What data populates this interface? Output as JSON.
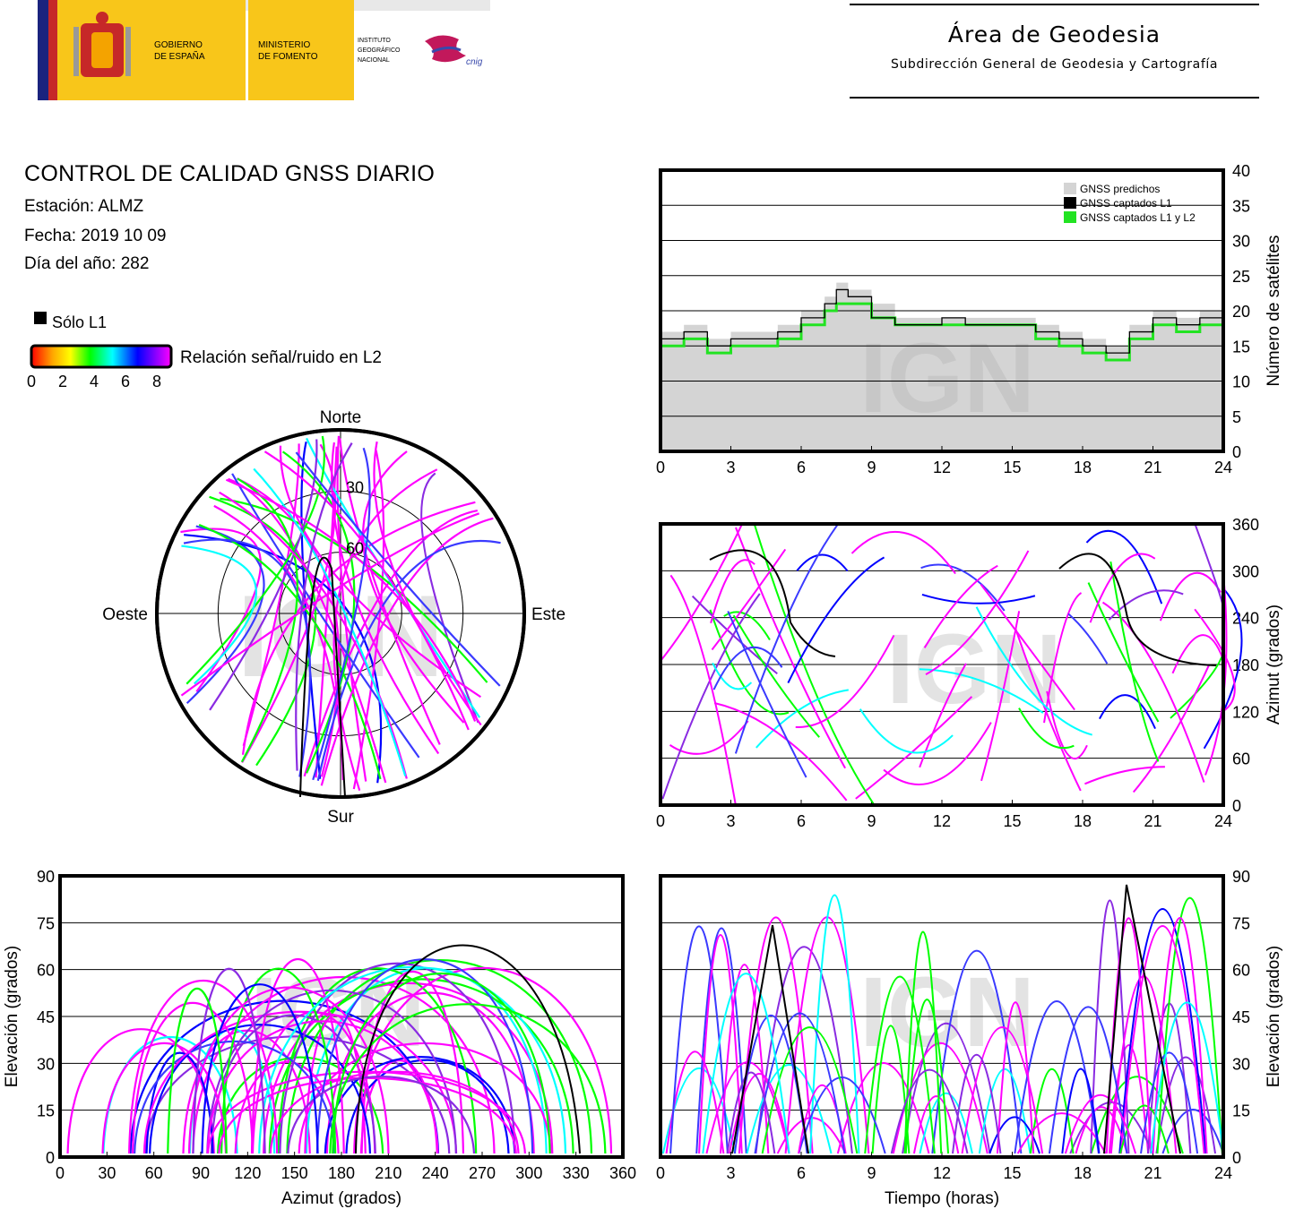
{
  "header": {
    "gov_line1": "GOBIERNO",
    "gov_line2": "DE ESPAÑA",
    "min_line1": "MINISTERIO",
    "min_line2": "DE FOMENTO",
    "inst_line1": "INSTITUTO",
    "inst_line2": "GEOGRÁFICO",
    "inst_line3": "NACIONAL",
    "cnig": "cnig",
    "area_title": "Área de Geodesia",
    "area_subtitle": "Subdirección General de Geodesia y Cartografía"
  },
  "report": {
    "title": "CONTROL DE CALIDAD GNSS DIARIO",
    "station": "Estación: ALMZ",
    "date": "Fecha: 2019 10 09",
    "doy": "Día del año: 282"
  },
  "legend": {
    "l1_only": "Sólo L1",
    "snr_label": "Relación señal/ruido en L2",
    "snr_ticks": [
      "0",
      "2",
      "4",
      "6",
      "8"
    ]
  },
  "colors": {
    "predicted": "#d4d4d4",
    "l1": "#000000",
    "l1l2": "#22e322",
    "track_main": "#ff00ff",
    "snr_scale": [
      "#ff0000",
      "#ffa500",
      "#ffff00",
      "#00ff00",
      "#00ffff",
      "#0000ff",
      "#ff00ff"
    ]
  },
  "watermark": "IGN",
  "chart_data": [
    {
      "type": "area",
      "name": "satellite-count",
      "ylabel": "Número de satélites",
      "xlim": [
        0,
        24
      ],
      "ylim": [
        0,
        40
      ],
      "xticks": [
        "0",
        "3",
        "6",
        "9",
        "12",
        "15",
        "18",
        "21",
        "24"
      ],
      "yticks": [
        "0",
        "5",
        "10",
        "15",
        "20",
        "25",
        "30",
        "35",
        "40"
      ],
      "grid": true,
      "legend_position": "top-right",
      "series": [
        {
          "name": "GNSS predichos",
          "x": [
            0,
            1,
            2,
            3,
            4,
            5,
            6,
            7,
            7.5,
            8,
            9,
            10,
            11,
            12,
            13,
            14,
            15,
            16,
            17,
            18,
            19,
            20,
            21,
            22,
            23,
            24
          ],
          "y": [
            17,
            18,
            16,
            17,
            17,
            18,
            20,
            22,
            24,
            23,
            21,
            19,
            19,
            19,
            19,
            19,
            19,
            18,
            17,
            16,
            15,
            18,
            20,
            19,
            20,
            19
          ]
        },
        {
          "name": "GNSS captados L1",
          "x": [
            0,
            1,
            2,
            3,
            4,
            5,
            6,
            7,
            7.5,
            8,
            9,
            10,
            11,
            12,
            13,
            14,
            15,
            16,
            17,
            18,
            19,
            20,
            21,
            22,
            23,
            24
          ],
          "y": [
            16,
            17,
            15,
            16,
            16,
            17,
            19,
            21,
            23,
            22,
            19,
            18,
            18,
            19,
            18,
            18,
            18,
            17,
            16,
            15,
            14,
            17,
            19,
            18,
            19,
            18
          ]
        },
        {
          "name": "GNSS captados L1 y L2",
          "x": [
            0,
            1,
            2,
            3,
            4,
            5,
            6,
            7,
            7.5,
            8,
            9,
            10,
            11,
            12,
            13,
            14,
            15,
            16,
            17,
            18,
            19,
            20,
            21,
            22,
            23,
            24
          ],
          "y": [
            15,
            16,
            14,
            15,
            15,
            16,
            18,
            20,
            21,
            21,
            19,
            18,
            18,
            18,
            18,
            18,
            18,
            16,
            15,
            14,
            13,
            16,
            18,
            17,
            18,
            17
          ]
        }
      ]
    },
    {
      "type": "scatter",
      "name": "sky-plot",
      "labels": {
        "north": "Norte",
        "south": "Sur",
        "east": "Este",
        "west": "Oeste"
      },
      "elevation_rings": [
        "30",
        "60"
      ]
    },
    {
      "type": "scatter",
      "name": "azimuth-vs-time",
      "ylabel": "Azimut (grados)",
      "xlim": [
        0,
        24
      ],
      "ylim": [
        0,
        360
      ],
      "xticks": [
        "0",
        "3",
        "6",
        "9",
        "12",
        "15",
        "18",
        "21",
        "24"
      ],
      "yticks": [
        "0",
        "60",
        "120",
        "180",
        "240",
        "300",
        "360"
      ],
      "grid": true
    },
    {
      "type": "scatter",
      "name": "elevation-vs-azimuth",
      "xlabel": "Azimut (grados)",
      "ylabel": "Elevación (grados)",
      "xlim": [
        0,
        360
      ],
      "ylim": [
        0,
        90
      ],
      "xticks": [
        "0",
        "30",
        "60",
        "90",
        "120",
        "150",
        "180",
        "210",
        "240",
        "270",
        "300",
        "330",
        "360"
      ],
      "yticks": [
        "0",
        "15",
        "30",
        "45",
        "60",
        "75",
        "90"
      ],
      "grid": true
    },
    {
      "type": "scatter",
      "name": "elevation-vs-time",
      "xlabel": "Tiempo (horas)",
      "ylabel": "Elevación (grados)",
      "xlim": [
        0,
        24
      ],
      "ylim": [
        0,
        90
      ],
      "xticks": [
        "0",
        "3",
        "6",
        "9",
        "12",
        "15",
        "18",
        "21",
        "24"
      ],
      "yticks": [
        "0",
        "15",
        "30",
        "45",
        "60",
        "75",
        "90"
      ],
      "grid": true
    }
  ]
}
